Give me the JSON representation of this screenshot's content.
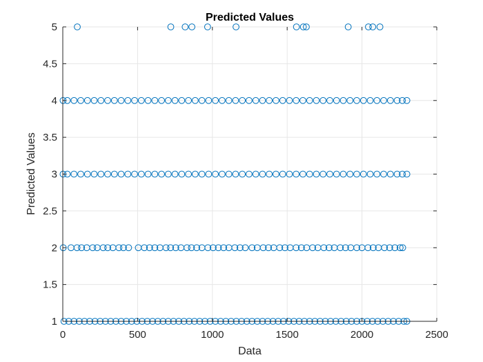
{
  "chart_data": {
    "type": "scatter",
    "title": "Predicted Values",
    "xlabel": "Data",
    "ylabel": "Predicted Values",
    "xlim": [
      0,
      2500
    ],
    "ylim": [
      1,
      5
    ],
    "xticks": [
      0,
      500,
      1000,
      1500,
      2000,
      2500
    ],
    "yticks": [
      1,
      1.5,
      2,
      2.5,
      3,
      3.5,
      4,
      4.5,
      5
    ],
    "xtick_labels": [
      "0",
      "500",
      "1000",
      "1500",
      "2000",
      "2500"
    ],
    "ytick_labels": [
      "1",
      "1.5",
      "2",
      "2.5",
      "3",
      "3.5",
      "4",
      "4.5",
      "5"
    ],
    "grid": true,
    "marker": "open-circle",
    "marker_color": "#0072BD",
    "series": [
      {
        "values_by_x": "y",
        "points": [
          {
            "x": 97,
            "y": 5
          },
          {
            "x": 722,
            "y": 5
          },
          {
            "x": 818,
            "y": 5
          },
          {
            "x": 863,
            "y": 5
          },
          {
            "x": 968,
            "y": 5
          },
          {
            "x": 1158,
            "y": 5
          },
          {
            "x": 1562,
            "y": 5
          },
          {
            "x": 1608,
            "y": 5
          },
          {
            "x": 1628,
            "y": 5
          },
          {
            "x": 1908,
            "y": 5
          },
          {
            "x": 2043,
            "y": 5
          },
          {
            "x": 2072,
            "y": 5
          },
          {
            "x": 2120,
            "y": 5
          },
          {
            "x": 2,
            "y": 4
          },
          {
            "x": 30,
            "y": 4
          },
          {
            "x": 75,
            "y": 4
          },
          {
            "x": 120,
            "y": 4
          },
          {
            "x": 165,
            "y": 4
          },
          {
            "x": 210,
            "y": 4
          },
          {
            "x": 255,
            "y": 4
          },
          {
            "x": 300,
            "y": 4
          },
          {
            "x": 345,
            "y": 4
          },
          {
            "x": 390,
            "y": 4
          },
          {
            "x": 435,
            "y": 4
          },
          {
            "x": 480,
            "y": 4
          },
          {
            "x": 525,
            "y": 4
          },
          {
            "x": 570,
            "y": 4
          },
          {
            "x": 615,
            "y": 4
          },
          {
            "x": 660,
            "y": 4
          },
          {
            "x": 705,
            "y": 4
          },
          {
            "x": 750,
            "y": 4
          },
          {
            "x": 795,
            "y": 4
          },
          {
            "x": 840,
            "y": 4
          },
          {
            "x": 885,
            "y": 4
          },
          {
            "x": 930,
            "y": 4
          },
          {
            "x": 975,
            "y": 4
          },
          {
            "x": 1020,
            "y": 4
          },
          {
            "x": 1065,
            "y": 4
          },
          {
            "x": 1110,
            "y": 4
          },
          {
            "x": 1155,
            "y": 4
          },
          {
            "x": 1200,
            "y": 4
          },
          {
            "x": 1245,
            "y": 4
          },
          {
            "x": 1290,
            "y": 4
          },
          {
            "x": 1335,
            "y": 4
          },
          {
            "x": 1380,
            "y": 4
          },
          {
            "x": 1425,
            "y": 4
          },
          {
            "x": 1470,
            "y": 4
          },
          {
            "x": 1515,
            "y": 4
          },
          {
            "x": 1560,
            "y": 4
          },
          {
            "x": 1605,
            "y": 4
          },
          {
            "x": 1650,
            "y": 4
          },
          {
            "x": 1695,
            "y": 4
          },
          {
            "x": 1740,
            "y": 4
          },
          {
            "x": 1785,
            "y": 4
          },
          {
            "x": 1830,
            "y": 4
          },
          {
            "x": 1875,
            "y": 4
          },
          {
            "x": 1920,
            "y": 4
          },
          {
            "x": 1965,
            "y": 4
          },
          {
            "x": 2010,
            "y": 4
          },
          {
            "x": 2055,
            "y": 4
          },
          {
            "x": 2100,
            "y": 4
          },
          {
            "x": 2145,
            "y": 4
          },
          {
            "x": 2190,
            "y": 4
          },
          {
            "x": 2235,
            "y": 4
          },
          {
            "x": 2270,
            "y": 4
          },
          {
            "x": 2300,
            "y": 4
          },
          {
            "x": 2,
            "y": 3
          },
          {
            "x": 30,
            "y": 3
          },
          {
            "x": 75,
            "y": 3
          },
          {
            "x": 120,
            "y": 3
          },
          {
            "x": 165,
            "y": 3
          },
          {
            "x": 210,
            "y": 3
          },
          {
            "x": 255,
            "y": 3
          },
          {
            "x": 300,
            "y": 3
          },
          {
            "x": 345,
            "y": 3
          },
          {
            "x": 390,
            "y": 3
          },
          {
            "x": 435,
            "y": 3
          },
          {
            "x": 480,
            "y": 3
          },
          {
            "x": 525,
            "y": 3
          },
          {
            "x": 570,
            "y": 3
          },
          {
            "x": 615,
            "y": 3
          },
          {
            "x": 660,
            "y": 3
          },
          {
            "x": 705,
            "y": 3
          },
          {
            "x": 750,
            "y": 3
          },
          {
            "x": 795,
            "y": 3
          },
          {
            "x": 840,
            "y": 3
          },
          {
            "x": 885,
            "y": 3
          },
          {
            "x": 930,
            "y": 3
          },
          {
            "x": 975,
            "y": 3
          },
          {
            "x": 1020,
            "y": 3
          },
          {
            "x": 1065,
            "y": 3
          },
          {
            "x": 1110,
            "y": 3
          },
          {
            "x": 1155,
            "y": 3
          },
          {
            "x": 1200,
            "y": 3
          },
          {
            "x": 1245,
            "y": 3
          },
          {
            "x": 1290,
            "y": 3
          },
          {
            "x": 1335,
            "y": 3
          },
          {
            "x": 1380,
            "y": 3
          },
          {
            "x": 1425,
            "y": 3
          },
          {
            "x": 1470,
            "y": 3
          },
          {
            "x": 1515,
            "y": 3
          },
          {
            "x": 1560,
            "y": 3
          },
          {
            "x": 1605,
            "y": 3
          },
          {
            "x": 1650,
            "y": 3
          },
          {
            "x": 1695,
            "y": 3
          },
          {
            "x": 1740,
            "y": 3
          },
          {
            "x": 1785,
            "y": 3
          },
          {
            "x": 1830,
            "y": 3
          },
          {
            "x": 1875,
            "y": 3
          },
          {
            "x": 1920,
            "y": 3
          },
          {
            "x": 1965,
            "y": 3
          },
          {
            "x": 2010,
            "y": 3
          },
          {
            "x": 2055,
            "y": 3
          },
          {
            "x": 2100,
            "y": 3
          },
          {
            "x": 2145,
            "y": 3
          },
          {
            "x": 2190,
            "y": 3
          },
          {
            "x": 2235,
            "y": 3
          },
          {
            "x": 2270,
            "y": 3
          },
          {
            "x": 2300,
            "y": 3
          },
          {
            "x": 3,
            "y": 2
          },
          {
            "x": 55,
            "y": 2
          },
          {
            "x": 95,
            "y": 2
          },
          {
            "x": 125,
            "y": 2
          },
          {
            "x": 160,
            "y": 2
          },
          {
            "x": 200,
            "y": 2
          },
          {
            "x": 230,
            "y": 2
          },
          {
            "x": 270,
            "y": 2
          },
          {
            "x": 300,
            "y": 2
          },
          {
            "x": 335,
            "y": 2
          },
          {
            "x": 375,
            "y": 2
          },
          {
            "x": 405,
            "y": 2
          },
          {
            "x": 440,
            "y": 2
          },
          {
            "x": 505,
            "y": 2
          },
          {
            "x": 545,
            "y": 2
          },
          {
            "x": 580,
            "y": 2
          },
          {
            "x": 615,
            "y": 2
          },
          {
            "x": 650,
            "y": 2
          },
          {
            "x": 690,
            "y": 2
          },
          {
            "x": 720,
            "y": 2
          },
          {
            "x": 755,
            "y": 2
          },
          {
            "x": 790,
            "y": 2
          },
          {
            "x": 830,
            "y": 2
          },
          {
            "x": 860,
            "y": 2
          },
          {
            "x": 895,
            "y": 2
          },
          {
            "x": 930,
            "y": 2
          },
          {
            "x": 970,
            "y": 2
          },
          {
            "x": 1005,
            "y": 2
          },
          {
            "x": 1040,
            "y": 2
          },
          {
            "x": 1075,
            "y": 2
          },
          {
            "x": 1110,
            "y": 2
          },
          {
            "x": 1150,
            "y": 2
          },
          {
            "x": 1185,
            "y": 2
          },
          {
            "x": 1220,
            "y": 2
          },
          {
            "x": 1265,
            "y": 2
          },
          {
            "x": 1300,
            "y": 2
          },
          {
            "x": 1340,
            "y": 2
          },
          {
            "x": 1375,
            "y": 2
          },
          {
            "x": 1410,
            "y": 2
          },
          {
            "x": 1450,
            "y": 2
          },
          {
            "x": 1485,
            "y": 2
          },
          {
            "x": 1520,
            "y": 2
          },
          {
            "x": 1560,
            "y": 2
          },
          {
            "x": 1595,
            "y": 2
          },
          {
            "x": 1630,
            "y": 2
          },
          {
            "x": 1670,
            "y": 2
          },
          {
            "x": 1705,
            "y": 2
          },
          {
            "x": 1745,
            "y": 2
          },
          {
            "x": 1780,
            "y": 2
          },
          {
            "x": 1815,
            "y": 2
          },
          {
            "x": 1855,
            "y": 2
          },
          {
            "x": 1890,
            "y": 2
          },
          {
            "x": 1925,
            "y": 2
          },
          {
            "x": 1965,
            "y": 2
          },
          {
            "x": 2000,
            "y": 2
          },
          {
            "x": 2040,
            "y": 2
          },
          {
            "x": 2075,
            "y": 2
          },
          {
            "x": 2110,
            "y": 2
          },
          {
            "x": 2150,
            "y": 2
          },
          {
            "x": 2185,
            "y": 2
          },
          {
            "x": 2220,
            "y": 2
          },
          {
            "x": 2255,
            "y": 2
          },
          {
            "x": 2272,
            "y": 2
          },
          {
            "x": 8,
            "y": 1
          },
          {
            "x": 40,
            "y": 1
          },
          {
            "x": 75,
            "y": 1
          },
          {
            "x": 110,
            "y": 1
          },
          {
            "x": 145,
            "y": 1
          },
          {
            "x": 180,
            "y": 1
          },
          {
            "x": 215,
            "y": 1
          },
          {
            "x": 250,
            "y": 1
          },
          {
            "x": 285,
            "y": 1
          },
          {
            "x": 320,
            "y": 1
          },
          {
            "x": 355,
            "y": 1
          },
          {
            "x": 390,
            "y": 1
          },
          {
            "x": 425,
            "y": 1
          },
          {
            "x": 460,
            "y": 1
          },
          {
            "x": 495,
            "y": 1
          },
          {
            "x": 530,
            "y": 1
          },
          {
            "x": 565,
            "y": 1
          },
          {
            "x": 600,
            "y": 1
          },
          {
            "x": 635,
            "y": 1
          },
          {
            "x": 670,
            "y": 1
          },
          {
            "x": 705,
            "y": 1
          },
          {
            "x": 740,
            "y": 1
          },
          {
            "x": 775,
            "y": 1
          },
          {
            "x": 810,
            "y": 1
          },
          {
            "x": 845,
            "y": 1
          },
          {
            "x": 880,
            "y": 1
          },
          {
            "x": 915,
            "y": 1
          },
          {
            "x": 950,
            "y": 1
          },
          {
            "x": 985,
            "y": 1
          },
          {
            "x": 1020,
            "y": 1
          },
          {
            "x": 1055,
            "y": 1
          },
          {
            "x": 1090,
            "y": 1
          },
          {
            "x": 1125,
            "y": 1
          },
          {
            "x": 1160,
            "y": 1
          },
          {
            "x": 1195,
            "y": 1
          },
          {
            "x": 1230,
            "y": 1
          },
          {
            "x": 1265,
            "y": 1
          },
          {
            "x": 1300,
            "y": 1
          },
          {
            "x": 1335,
            "y": 1
          },
          {
            "x": 1370,
            "y": 1
          },
          {
            "x": 1405,
            "y": 1
          },
          {
            "x": 1440,
            "y": 1
          },
          {
            "x": 1475,
            "y": 1
          },
          {
            "x": 1510,
            "y": 1
          },
          {
            "x": 1545,
            "y": 1
          },
          {
            "x": 1580,
            "y": 1
          },
          {
            "x": 1615,
            "y": 1
          },
          {
            "x": 1650,
            "y": 1
          },
          {
            "x": 1685,
            "y": 1
          },
          {
            "x": 1720,
            "y": 1
          },
          {
            "x": 1755,
            "y": 1
          },
          {
            "x": 1790,
            "y": 1
          },
          {
            "x": 1825,
            "y": 1
          },
          {
            "x": 1860,
            "y": 1
          },
          {
            "x": 1895,
            "y": 1
          },
          {
            "x": 1930,
            "y": 1
          },
          {
            "x": 1965,
            "y": 1
          },
          {
            "x": 2000,
            "y": 1
          },
          {
            "x": 2035,
            "y": 1
          },
          {
            "x": 2070,
            "y": 1
          },
          {
            "x": 2105,
            "y": 1
          },
          {
            "x": 2140,
            "y": 1
          },
          {
            "x": 2175,
            "y": 1
          },
          {
            "x": 2210,
            "y": 1
          },
          {
            "x": 2245,
            "y": 1
          },
          {
            "x": 2280,
            "y": 1
          },
          {
            "x": 2300,
            "y": 1
          }
        ]
      }
    ]
  }
}
